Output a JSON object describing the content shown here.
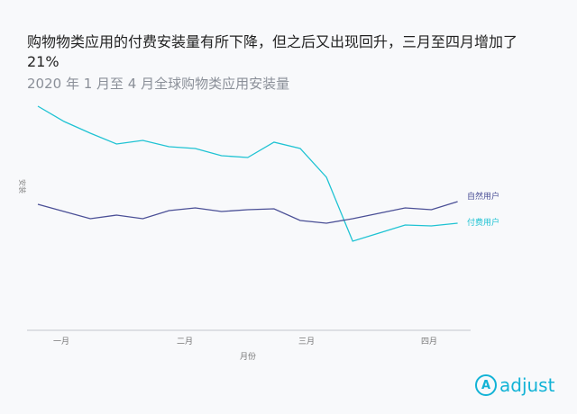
{
  "chart_data": {
    "type": "line",
    "title": "购物物类应用的付费安装量有所下降，但之后又出现回升，三月至四月增加了 21%",
    "subtitle": "2020 年 1 月至 4 月全球购物类应用安装量",
    "xlabel": "月份",
    "ylabel": "安装",
    "xticks": [
      "一月",
      "二月",
      "三月",
      "四月"
    ],
    "ylim": [
      0,
      260
    ],
    "series": [
      {
        "name": "付费用户",
        "color": "#1fc3d3",
        "values": [
          252,
          235,
          222,
          210,
          214,
          207,
          205,
          197,
          195,
          212,
          205,
          173,
          102,
          111,
          120,
          119,
          122
        ]
      },
      {
        "name": "自然用户",
        "color": "#4a4f96",
        "values": [
          143,
          135,
          127,
          131,
          127,
          136,
          139,
          135,
          137,
          138,
          125,
          122,
          127,
          133,
          139,
          137,
          146
        ]
      }
    ]
  },
  "brand": "adjust"
}
